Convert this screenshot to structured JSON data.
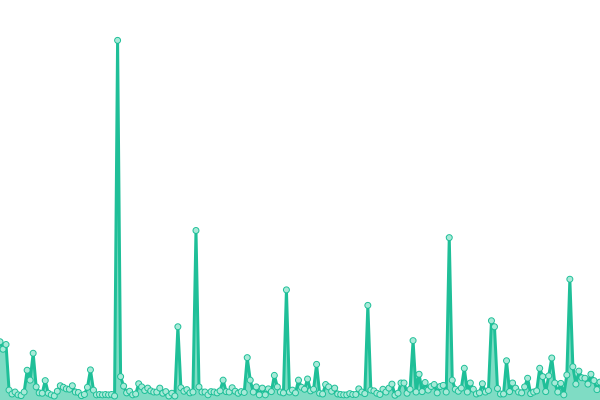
{
  "chart_data": {
    "type": "area",
    "title": "",
    "xlabel": "",
    "ylabel": "",
    "grid": false,
    "legend": "none",
    "ylim": [
      0,
      100
    ],
    "x": [
      0,
      1,
      2,
      3,
      4,
      5,
      6,
      7,
      8,
      9,
      10,
      11,
      12,
      13,
      14,
      15,
      16,
      17,
      18,
      19,
      20,
      21,
      22,
      23,
      24,
      25,
      26,
      27,
      28,
      29,
      30,
      31,
      32,
      33,
      34,
      35,
      36,
      37,
      38,
      39,
      40,
      41,
      42,
      43,
      44,
      45,
      46,
      47,
      48,
      49,
      50,
      51,
      52,
      53,
      54,
      55,
      56,
      57,
      58,
      59,
      60,
      61,
      62,
      63,
      64,
      65,
      66,
      67,
      68,
      69,
      70,
      71,
      72,
      73,
      74,
      75,
      76,
      77,
      78,
      79,
      80,
      81,
      82,
      83,
      84,
      85,
      86,
      87,
      88,
      89,
      90,
      91,
      92,
      93,
      94,
      95,
      96,
      97,
      98,
      99,
      100,
      101,
      102,
      103,
      104,
      105,
      106,
      107,
      108,
      109,
      110,
      111,
      112,
      113,
      114,
      115,
      116,
      117,
      118,
      119,
      120,
      121,
      122,
      123,
      124,
      125,
      126,
      127,
      128,
      129,
      130,
      131,
      132,
      133,
      134,
      135,
      136,
      137,
      138,
      139,
      140,
      141,
      142,
      143,
      144,
      145,
      146,
      147,
      148,
      149,
      150,
      151,
      152,
      153,
      154,
      155,
      156,
      157,
      158,
      159,
      160,
      161,
      162,
      163,
      164,
      165,
      166,
      167,
      168,
      169,
      170,
      171,
      172,
      173,
      174,
      175,
      176,
      177,
      178,
      179,
      180,
      181,
      182,
      183,
      184,
      185,
      186,
      187,
      188,
      189,
      190,
      191,
      192,
      193,
      194,
      195,
      196,
      197,
      198,
      199
    ],
    "series": [
      {
        "name": "",
        "color": "#1fbf98",
        "fill": "#7fdcc4",
        "marker_fill": "#a8ead8",
        "values": [
          14.2,
          12.3,
          13.5,
          2,
          1,
          1.5,
          0.8,
          0.6,
          1.5,
          7,
          4.5,
          11.3,
          2.8,
          1.3,
          1.2,
          4.4,
          1.2,
          0.8,
          0.5,
          1.7,
          3.1,
          2.7,
          2.3,
          2.2,
          3.1,
          1.5,
          1.4,
          0.6,
          0.9,
          2.7,
          7.1,
          2,
          0.8,
          0.9,
          0.8,
          0.9,
          0.8,
          0.9,
          0.5,
          90.3,
          5.4,
          3,
          1.3,
          1.7,
          0.8,
          1,
          3.6,
          2.8,
          1.9,
          2.5,
          1.8,
          1.5,
          1.5,
          2.5,
          1.2,
          1.6,
          0.5,
          1.2,
          0.5,
          18,
          2.6,
          1.7,
          2.1,
          1.3,
          1.5,
          42.3,
          2.8,
          1.5,
          1.5,
          0.8,
          1.6,
          1.5,
          1.3,
          1.8,
          4.5,
          1.6,
          1.5,
          2.6,
          1.7,
          1.2,
          1.6,
          1.4,
          10.2,
          4.5,
          1.5,
          2.8,
          0.8,
          2.5,
          0.8,
          2.3,
          1.6,
          5.7,
          2.8,
          1.5,
          1.3,
          27.3,
          1.5,
          2,
          1.3,
          4.5,
          2.7,
          2.2,
          4.8,
          1.8,
          2.2,
          8.5,
          1.2,
          1,
          3.4,
          2.8,
          1.7,
          2.5,
          1,
          0.9,
          0.8,
          0.8,
          1.1,
          0.9,
          0.9,
          2.3,
          1.5,
          1.1,
          23.4,
          2,
          1.8,
          1.2,
          0.9,
          2.2,
          1.5,
          2.5,
          3.5,
          0.7,
          1.2,
          3.8,
          3.8,
          1.2,
          2.2,
          14.5,
          1.5,
          6,
          1.6,
          3.9,
          2,
          2.9,
          3.4,
          1.3,
          2.9,
          3.2,
          1.5,
          40.5,
          4.5,
          2.2,
          1.7,
          2.5,
          7.5,
          1.5,
          3.8,
          2.2,
          1,
          1.3,
          3.6,
          1.5,
          1.9,
          19.5,
          18,
          2.4,
          1,
          1,
          9.4,
          1.6,
          3.8,
          2.5,
          1.5,
          1.3,
          2.8,
          5,
          1.1,
          1.5,
          1.8,
          7.5,
          5.4,
          1.6,
          5.6,
          10.1,
          3.8,
          1.5,
          3.7,
          0.8,
          5.8,
          30,
          7.9,
          3.5,
          6.8,
          5.1,
          5,
          3.5,
          6,
          4.4,
          2.1,
          4
        ]
      }
    ]
  }
}
